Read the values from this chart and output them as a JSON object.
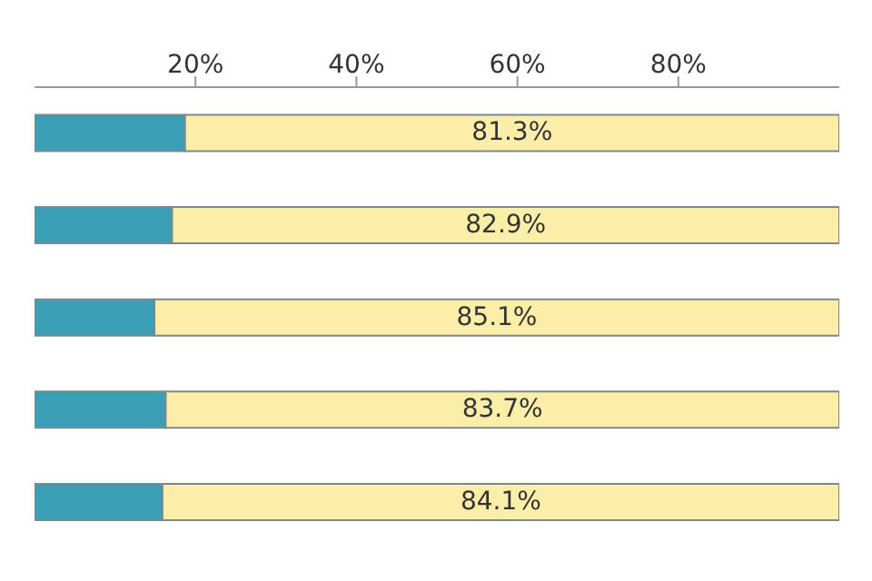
{
  "chart_data": {
    "type": "bar",
    "orientation": "horizontal",
    "stacked": true,
    "categories": [
      null,
      null,
      null,
      null,
      null
    ],
    "series": [
      {
        "color": "#3a9fb5",
        "values": [
          18.7,
          17.1,
          14.9,
          16.3,
          15.9
        ]
      },
      {
        "color": "#fbeea8",
        "values": [
          81.3,
          82.9,
          85.1,
          83.7,
          84.1
        ],
        "value_labels": [
          "81.3%",
          "82.9%",
          "85.1%",
          "83.7%",
          "84.1%"
        ]
      }
    ],
    "xlim": [
      0,
      100
    ],
    "xticks": [
      {
        "value": 20,
        "label": "20%"
      },
      {
        "value": 40,
        "label": "40%"
      },
      {
        "value": 60,
        "label": "60%"
      },
      {
        "value": 80,
        "label": "80%"
      }
    ],
    "legend": false,
    "grid": false
  }
}
